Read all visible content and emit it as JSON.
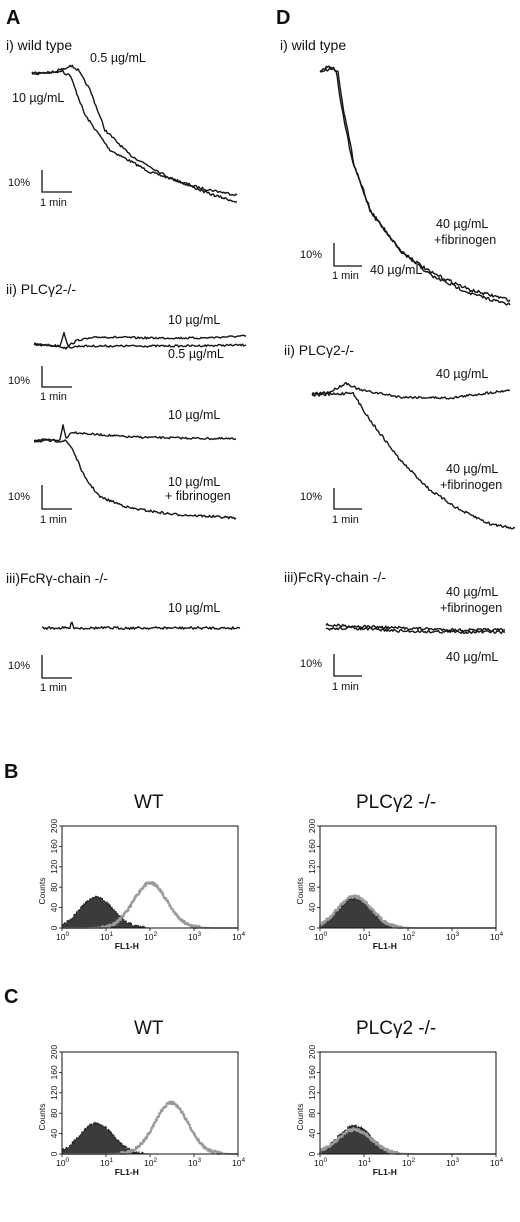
{
  "panels": {
    "A": {
      "letter": "A",
      "wild_type": {
        "label": "i) wild type",
        "conc_high": "10 µg/mL",
        "conc_low": "0.5 µg/mL"
      },
      "plc_null": {
        "label": "ii) PLCγ2-/-",
        "top_conc_high": "10 µg/mL",
        "top_conc_low": "0.5 µg/mL",
        "bottom_conc": "10 µg/mL",
        "bottom_fib_line1": "10 µg/mL",
        "bottom_fib_line2": "+ fibrinogen"
      },
      "fcr_null": {
        "label": "iii)FcRγ-chain -/-",
        "conc": "10 µg/mL"
      }
    },
    "D": {
      "letter": "D",
      "wild_type": {
        "label": "i) wild type",
        "fib_line1": "40 µg/mL",
        "fib_line2": "+fibrinogen",
        "conc": "40 µg/mL"
      },
      "plc_null": {
        "label": "ii) PLCγ2-/-",
        "conc": "40 µg/mL",
        "fib_line1": "40 µg/mL",
        "fib_line2": "+fibrinogen"
      },
      "fcr_null": {
        "label": "iii)FcRγ-chain -/-",
        "fib_line1": "40 µg/mL",
        "fib_line2": "+fibrinogen",
        "conc": "40 µg/mL"
      }
    },
    "B": {
      "letter": "B",
      "left_title": "WT",
      "right_title": "PLCγ2 -/-"
    },
    "C": {
      "letter": "C",
      "left_title": "WT",
      "right_title": "PLCγ2 -/-"
    }
  },
  "scale_bar": {
    "percent": "10%",
    "time": "1 min"
  },
  "histogram_axes": {
    "ylabel": "Counts",
    "yticks": [
      "0",
      "40",
      "80",
      "120",
      "160",
      "200"
    ],
    "xlabel": "FL1-H",
    "xtick_base": "10",
    "xtick_exponents": [
      "0",
      "1",
      "2",
      "3",
      "4"
    ]
  },
  "chart_data": [
    {
      "type": "area",
      "panel": "B",
      "title": "WT",
      "xlabel": "FL1-H",
      "ylabel": "Counts",
      "xscale": "log",
      "xlim": [
        1,
        10000
      ],
      "ylim": [
        0,
        200
      ],
      "series": [
        {
          "name": "",
          "style": "filled",
          "peak_x": 6,
          "peak_y": 60
        },
        {
          "name": "",
          "style": "outline",
          "peak_x": 100,
          "peak_y": 88
        }
      ]
    },
    {
      "type": "area",
      "panel": "B",
      "title": "PLCγ2 -/-",
      "xlabel": "FL1-H",
      "ylabel": "Counts",
      "xscale": "log",
      "xlim": [
        1,
        10000
      ],
      "ylim": [
        0,
        200
      ],
      "series": [
        {
          "name": "",
          "style": "filled",
          "peak_x": 6,
          "peak_y": 58
        },
        {
          "name": "",
          "style": "outline",
          "peak_x": 6,
          "peak_y": 62
        }
      ]
    },
    {
      "type": "area",
      "panel": "C",
      "title": "WT",
      "xlabel": "FL1-H",
      "ylabel": "Counts",
      "xscale": "log",
      "xlim": [
        1,
        10000
      ],
      "ylim": [
        0,
        200
      ],
      "series": [
        {
          "name": "",
          "style": "filled",
          "peak_x": 6,
          "peak_y": 60
        },
        {
          "name": "",
          "style": "outline",
          "peak_x": 300,
          "peak_y": 100
        }
      ]
    },
    {
      "type": "area",
      "panel": "C",
      "title": "PLCγ2 -/-",
      "xlabel": "FL1-H",
      "ylabel": "Counts",
      "xscale": "log",
      "xlim": [
        1,
        10000
      ],
      "ylim": [
        0,
        200
      ],
      "series": [
        {
          "name": "",
          "style": "filled",
          "peak_x": 6,
          "peak_y": 55
        },
        {
          "name": "",
          "style": "outline",
          "peak_x": 6,
          "peak_y": 48
        }
      ]
    }
  ]
}
